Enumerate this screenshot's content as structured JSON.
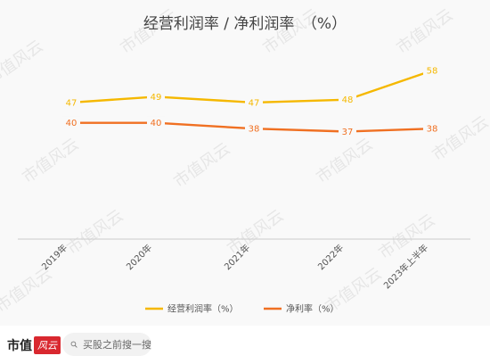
{
  "chart_data": {
    "type": "line",
    "title": "经营利润率 / 净利润率　（%）",
    "categories": [
      "2019年",
      "2020年",
      "2021年",
      "2022年",
      "2023年上半年"
    ],
    "series": [
      {
        "name": "经营利润率（%）",
        "values": [
          47,
          49,
          47,
          48,
          58
        ],
        "color": "#f5b800"
      },
      {
        "name": "净利率（%）",
        "values": [
          40,
          40,
          38,
          37,
          38
        ],
        "color": "#f07022"
      }
    ],
    "ylim": [
      0,
      70
    ],
    "grid": false,
    "legend_position": "bottom"
  },
  "watermark": "市值风云",
  "footer": {
    "brand": "市值",
    "brand_mark": "风云",
    "search_placeholder": "买股之前搜一搜"
  },
  "icons": {
    "search": "search-icon"
  }
}
